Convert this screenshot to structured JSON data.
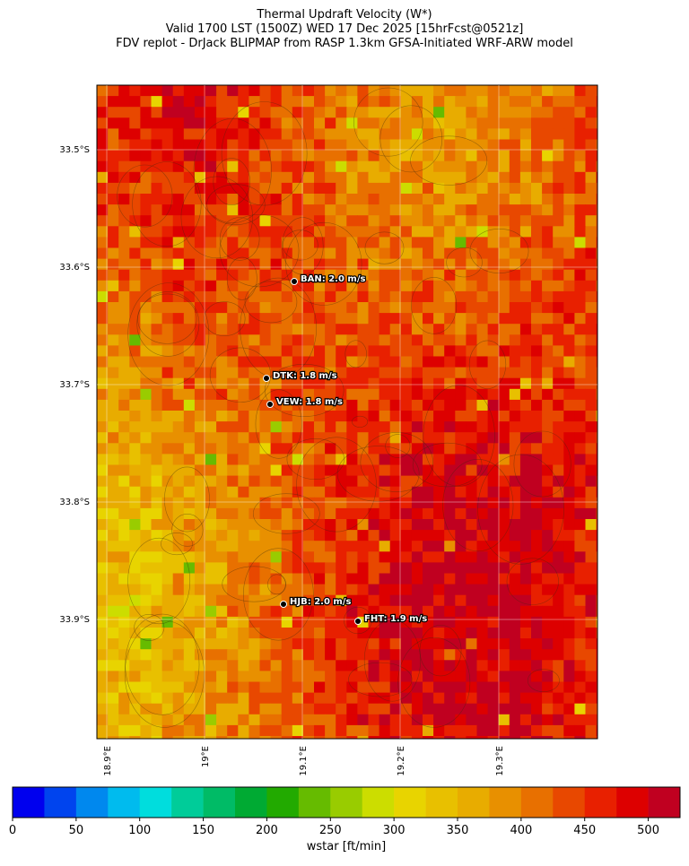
{
  "title_lines": [
    "Thermal Updraft Velocity (W*)",
    "Valid 1700 LST (1500Z) WED 17 Dec 2025 [15hrFcst@0521z]",
    "FDV replot - DrJack BLIPMAP from RASP 1.3km GFSA-Initiated WRF-ARW model"
  ],
  "lat_labels": [
    "33.5°S",
    "33.6°S",
    "33.7°S",
    "33.8°S",
    "33.9°S"
  ],
  "lon_labels": [
    "18.9°E",
    "19°E",
    "19.1°E",
    "19.2°E",
    "19.3°E"
  ],
  "stations": [
    "BAN: 2.0 m/s",
    "DTK: 1.8 m/s",
    "VEW: 1.8 m/s",
    "HJB: 2.0 m/s",
    "FHT: 1.9 m/s"
  ],
  "colorbar": {
    "label": "wstar [ft/min]",
    "lim": [
      0,
      525
    ],
    "ticks": [
      0,
      50,
      100,
      150,
      200,
      250,
      300,
      350,
      400,
      450,
      500
    ],
    "colors": [
      "#0000ee",
      "#0044ee",
      "#0088ee",
      "#00bbee",
      "#00dddd",
      "#00cc99",
      "#00bb66",
      "#00aa33",
      "#22aa00",
      "#66bb00",
      "#99cc00",
      "#ccdd00",
      "#e8d400",
      "#e8c000",
      "#e8ac00",
      "#e89000",
      "#e87000",
      "#e84800",
      "#e82000",
      "#dd0000",
      "#c00020"
    ]
  }
}
